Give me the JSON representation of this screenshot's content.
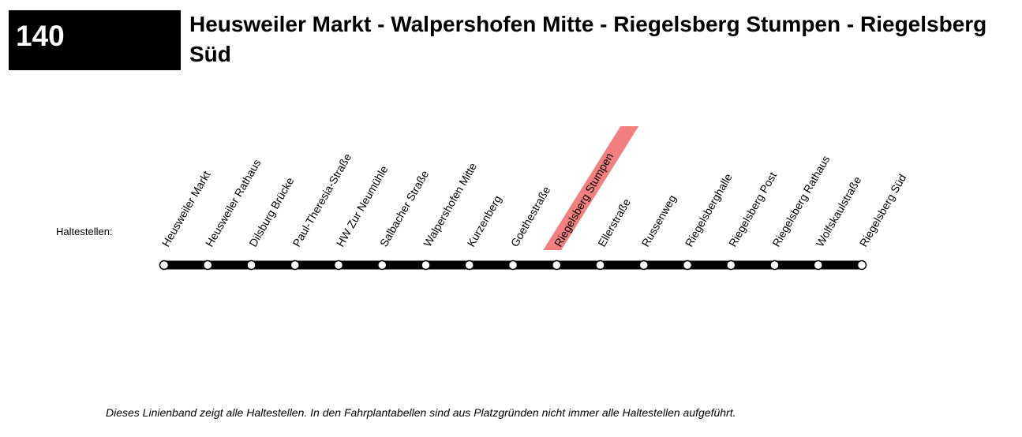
{
  "header": {
    "line_number": "140",
    "title": "Heusweiler Markt - Walpershofen Mitte - Riegelsberg Stumpen - Riegelsberg Süd"
  },
  "stops_label": "Haltestellen:",
  "stops": [
    "Heusweiler Markt",
    "Heusweiler Rathaus",
    "Dilsburg Brücke",
    "Paul-Theresia-Straße",
    "HW Zur Neumühle",
    "Salbacher Straße",
    "Walpershofen Mitte",
    "Kurzenberg",
    "Goethestraße",
    "Riegelsberg Stumpen",
    "Ellerstraße",
    "Russenweg",
    "Riegelsberghalle",
    "Riegelsberg Post",
    "Riegelsberg Rathaus",
    "Wolfskaulstraße",
    "Riegelsberg Süd"
  ],
  "highlighted_stop": "Riegelsberg Stumpen",
  "colors": {
    "highlight": "#f28080",
    "line": "#000000",
    "stop_fill": "#ffffff"
  },
  "footnote": "Dieses Linienband zeigt alle Haltestellen. In den Fahrplantabellen sind aus Platzgründen nicht immer alle Haltestellen aufgeführt."
}
